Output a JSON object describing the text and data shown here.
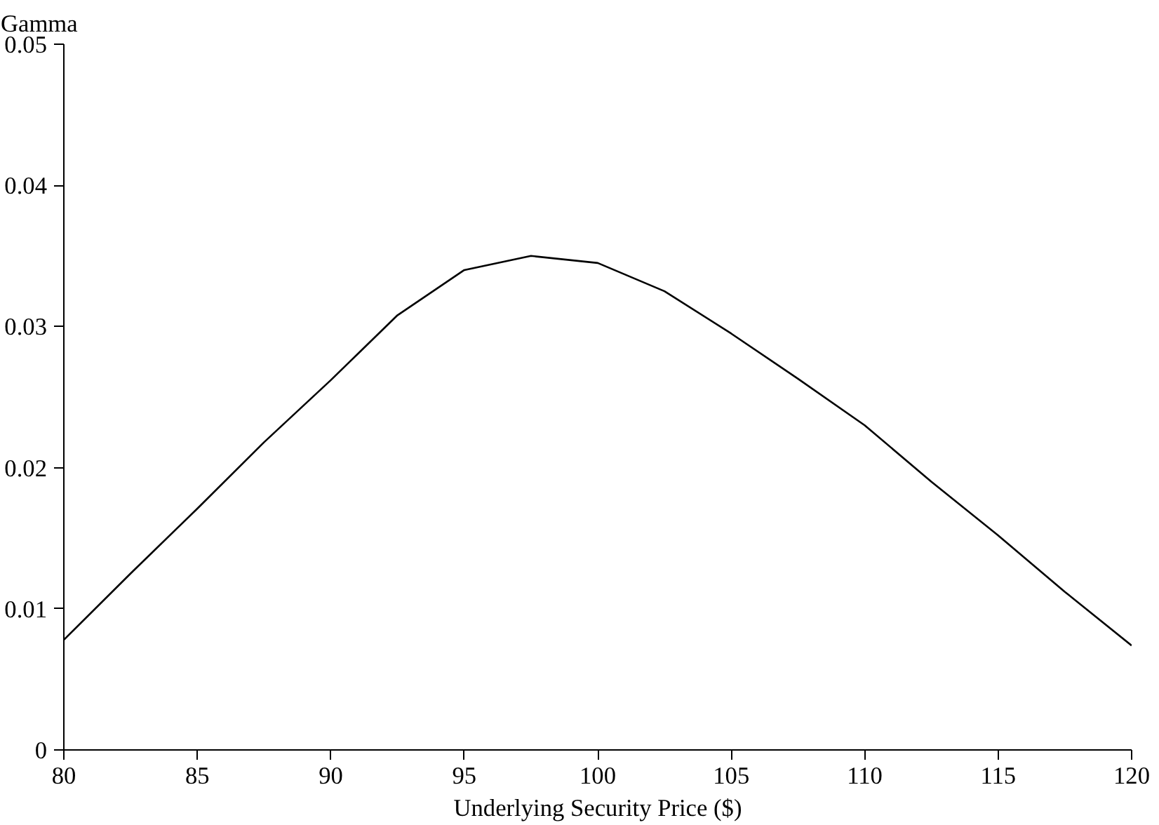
{
  "chart_data": {
    "type": "line",
    "ylabel": "Gamma",
    "xlabel": "Underlying Security Price ($)",
    "x": [
      80,
      82.5,
      85,
      87.5,
      90,
      92.5,
      95,
      97.5,
      100,
      102.5,
      105,
      107.5,
      110,
      112.5,
      115,
      117.5,
      120
    ],
    "series": [
      {
        "color": "#000000",
        "values": [
          0.0078,
          0.0125,
          0.0171,
          0.0218,
          0.0262,
          0.0308,
          0.034,
          0.035,
          0.0345,
          0.0325,
          0.0295,
          0.0263,
          0.023,
          0.019,
          0.0152,
          0.0112,
          0.0074
        ]
      }
    ],
    "xlim": [
      80,
      120
    ],
    "xticks": [
      80,
      85,
      90,
      95,
      100,
      105,
      110,
      115,
      120
    ],
    "ylim": [
      0,
      0.05
    ],
    "yticks": [
      0,
      0.01,
      0.02,
      0.03,
      0.04,
      0.05
    ],
    "grid": false,
    "marker": "none",
    "line_style": "solid"
  }
}
